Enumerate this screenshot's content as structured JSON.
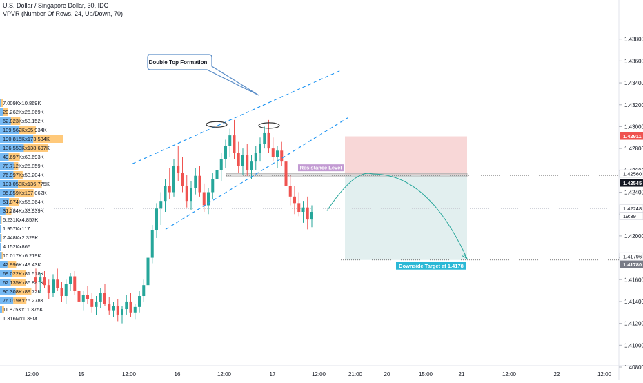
{
  "header": {
    "title": "U.S. Dollar / Singapore Dollar, 30, IDC",
    "indicator": "VPVR (Number Of Rows, 24, Up/Down, 70)"
  },
  "colors": {
    "up": "#26a69a",
    "down": "#ef5350",
    "vp_up": "#4aa3f0",
    "vp_down": "#ffb74d",
    "channel": "#2196f3",
    "stop_zone": "#f8d7d7",
    "target_zone": "#e2efef",
    "projection": "#26a69a",
    "resistance_label_bg": "#c39bd3",
    "target_label_bg": "#2bb8d6",
    "current_price_bg": "#ef5350",
    "dark_price_bg": "#131722",
    "gray_price_bg": "#787b86"
  },
  "chart_data": {
    "type": "candlestick",
    "title": "U.S. Dollar / Singapore Dollar, 30, IDC",
    "ylim": [
      1.408,
      1.44
    ],
    "y_ticks": [
      "1.43800",
      "1.43600",
      "1.43400",
      "1.43200",
      "1.43000",
      "1.42800",
      "1.42600",
      "1.42400",
      "1.42200",
      "1.42000",
      "1.41800",
      "1.41600",
      "1.41400",
      "1.41200",
      "1.41000",
      "1.40800"
    ],
    "x_ticks": [
      "12:00",
      "15",
      "12:00",
      "16",
      "12:00",
      "17",
      "12:00",
      "21:00",
      "20",
      "15:00",
      "21",
      "12:00",
      "22",
      "12:00"
    ],
    "price_tags": [
      {
        "value": "1.42911",
        "style": "current"
      },
      {
        "value": "1.42560",
        "style": "plain"
      },
      {
        "value": "1.42545",
        "style": "dark"
      },
      {
        "value": "1.42248",
        "style": "plain"
      },
      {
        "value": "19:39",
        "style": "plain"
      },
      {
        "value": "1.41796",
        "style": "plain"
      },
      {
        "value": "1.41780",
        "style": "gray"
      }
    ],
    "volume_profile": [
      {
        "label": "7.009Kx10.869K",
        "up": 7.009,
        "down": 10.869
      },
      {
        "label": "20.262Kx25.869K",
        "up": 20.262,
        "down": 25.869
      },
      {
        "label": "62.823Kx53.152K",
        "up": 62.823,
        "down": 53.152
      },
      {
        "label": "109.562Kx95.934K",
        "up": 109.562,
        "down": 95.934
      },
      {
        "label": "190.815Kx173.534K",
        "up": 190.815,
        "down": 173.534
      },
      {
        "label": "136.553Kx138.697K",
        "up": 136.553,
        "down": 138.697
      },
      {
        "label": "49.697Kx63.693K",
        "up": 49.697,
        "down": 63.693
      },
      {
        "label": "78.712Kx25.859K",
        "up": 78.712,
        "down": 25.859
      },
      {
        "label": "76.997Kx53.204K",
        "up": 76.997,
        "down": 53.204
      },
      {
        "label": "103.058Kx136.775K",
        "up": 103.058,
        "down": 136.775
      },
      {
        "label": "85.859Kx107.062K",
        "up": 85.859,
        "down": 107.062
      },
      {
        "label": "51.874Kx55.364K",
        "up": 51.874,
        "down": 55.364
      },
      {
        "label": "31.284Kx33.939K",
        "up": 31.284,
        "down": 33.939
      },
      {
        "label": "5.231Kx4.857K",
        "up": 5.231,
        "down": 4.857
      },
      {
        "label": "1.957Kx117",
        "up": 1.957,
        "down": 0.117
      },
      {
        "label": "7.448Kx2.329K",
        "up": 7.448,
        "down": 2.329
      },
      {
        "label": "4.152Kx866",
        "up": 4.152,
        "down": 0.866
      },
      {
        "label": "10.017Kx6.219K",
        "up": 10.017,
        "down": 6.219
      },
      {
        "label": "42.996Kx49.43K",
        "up": 42.996,
        "down": 49.43
      },
      {
        "label": "69.022Kx81.518K",
        "up": 69.022,
        "down": 81.518
      },
      {
        "label": "62.135Kx86.881K",
        "up": 62.135,
        "down": 86.881
      },
      {
        "label": "90.308Kx89.72K",
        "up": 90.308,
        "down": 89.72
      },
      {
        "label": "76.019Kx75.278K",
        "up": 76.019,
        "down": 75.278
      },
      {
        "label": "11.875Kx11.375K",
        "up": 11.875,
        "down": 11.375
      },
      {
        "label": "1.316Mx1.39M",
        "up": 1316,
        "down": 1390
      }
    ],
    "candles_ohlc": [
      [
        1.4162,
        1.417,
        1.415,
        1.4158
      ],
      [
        1.4158,
        1.4166,
        1.4148,
        1.4162
      ],
      [
        1.4162,
        1.4168,
        1.4152,
        1.4155
      ],
      [
        1.4155,
        1.416,
        1.4142,
        1.4148
      ],
      [
        1.4148,
        1.4165,
        1.4144,
        1.416
      ],
      [
        1.416,
        1.417,
        1.415,
        1.4152
      ],
      [
        1.4152,
        1.4158,
        1.414,
        1.4145
      ],
      [
        1.4145,
        1.416,
        1.4138,
        1.4156
      ],
      [
        1.4156,
        1.4166,
        1.415,
        1.4163
      ],
      [
        1.4163,
        1.4168,
        1.4146,
        1.415
      ],
      [
        1.415,
        1.4156,
        1.4136,
        1.414
      ],
      [
        1.414,
        1.415,
        1.4132,
        1.4146
      ],
      [
        1.4146,
        1.4154,
        1.4138,
        1.4142
      ],
      [
        1.4142,
        1.4148,
        1.413,
        1.4135
      ],
      [
        1.4135,
        1.4145,
        1.4128,
        1.414
      ],
      [
        1.414,
        1.4152,
        1.4134,
        1.4148
      ],
      [
        1.4148,
        1.4156,
        1.4136,
        1.4138
      ],
      [
        1.4138,
        1.4144,
        1.4128,
        1.4132
      ],
      [
        1.4132,
        1.414,
        1.4126,
        1.4136
      ],
      [
        1.4136,
        1.4142,
        1.4122,
        1.4128
      ],
      [
        1.4128,
        1.4136,
        1.412,
        1.4133
      ],
      [
        1.4133,
        1.4146,
        1.4128,
        1.414
      ],
      [
        1.414,
        1.4148,
        1.4126,
        1.413
      ],
      [
        1.413,
        1.4138,
        1.4124,
        1.4135
      ],
      [
        1.4135,
        1.415,
        1.413,
        1.4145
      ],
      [
        1.4145,
        1.416,
        1.414,
        1.4155
      ],
      [
        1.4155,
        1.4185,
        1.415,
        1.418
      ],
      [
        1.418,
        1.421,
        1.4175,
        1.4205
      ],
      [
        1.4205,
        1.423,
        1.4198,
        1.4225
      ],
      [
        1.4225,
        1.424,
        1.421,
        1.4232
      ],
      [
        1.4232,
        1.4252,
        1.4222,
        1.4246
      ],
      [
        1.4246,
        1.4262,
        1.4234,
        1.424
      ],
      [
        1.424,
        1.427,
        1.4236,
        1.4264
      ],
      [
        1.4264,
        1.4282,
        1.425,
        1.4258
      ],
      [
        1.4258,
        1.4272,
        1.424,
        1.4246
      ],
      [
        1.4246,
        1.4256,
        1.4226,
        1.4232
      ],
      [
        1.4232,
        1.425,
        1.4224,
        1.4244
      ],
      [
        1.4244,
        1.4262,
        1.4238,
        1.4255
      ],
      [
        1.4255,
        1.4264,
        1.4236,
        1.424
      ],
      [
        1.424,
        1.4248,
        1.4222,
        1.4228
      ],
      [
        1.4228,
        1.4244,
        1.422,
        1.424
      ],
      [
        1.424,
        1.4258,
        1.4234,
        1.4252
      ],
      [
        1.4252,
        1.4266,
        1.4244,
        1.426
      ],
      [
        1.426,
        1.4276,
        1.425,
        1.427
      ],
      [
        1.427,
        1.4288,
        1.4262,
        1.4282
      ],
      [
        1.4282,
        1.4298,
        1.4272,
        1.4292
      ],
      [
        1.4292,
        1.4306,
        1.427,
        1.4276
      ],
      [
        1.4276,
        1.4286,
        1.4258,
        1.4264
      ],
      [
        1.4264,
        1.428,
        1.4256,
        1.4274
      ],
      [
        1.4274,
        1.4284,
        1.4255,
        1.426
      ],
      [
        1.426,
        1.4274,
        1.4252,
        1.4268
      ],
      [
        1.4268,
        1.4282,
        1.426,
        1.4276
      ],
      [
        1.4276,
        1.429,
        1.4268,
        1.4284
      ],
      [
        1.4284,
        1.43,
        1.428,
        1.4294
      ],
      [
        1.4294,
        1.4306,
        1.4276,
        1.428
      ],
      [
        1.428,
        1.429,
        1.4268,
        1.4272
      ],
      [
        1.4272,
        1.4282,
        1.4262,
        1.4278
      ],
      [
        1.4278,
        1.4286,
        1.4264,
        1.4268
      ],
      [
        1.4268,
        1.4276,
        1.424,
        1.4246
      ],
      [
        1.4246,
        1.4256,
        1.4228,
        1.4236
      ],
      [
        1.4236,
        1.4246,
        1.422,
        1.423
      ],
      [
        1.423,
        1.424,
        1.4218,
        1.4222
      ],
      [
        1.4222,
        1.4232,
        1.4212,
        1.4226
      ],
      [
        1.4226,
        1.4236,
        1.4206,
        1.4215
      ],
      [
        1.4215,
        1.4228,
        1.4208,
        1.4222
      ]
    ],
    "channel_lines": [
      {
        "x": [
          0,
          1
        ],
        "y": [
          1.4266,
          1.4352
        ]
      },
      {
        "x": [
          0,
          1
        ],
        "y": [
          1.4206,
          1.4308
        ]
      }
    ],
    "annotations": {
      "callout": "Double Top Formation",
      "resistance_label": "Resistance Level",
      "target_label": "Downside Target at 1.4178",
      "resistance_price": 1.4256,
      "target_price": 1.4178,
      "stop_price": 1.42911
    }
  }
}
